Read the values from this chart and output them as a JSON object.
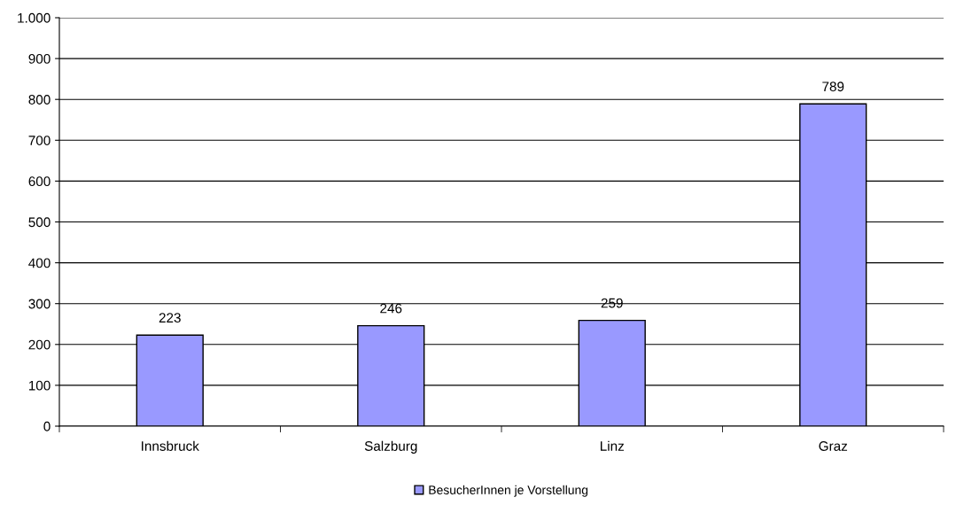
{
  "chart_data": {
    "type": "bar",
    "categories": [
      "Innsbruck",
      "Salzburg",
      "Linz",
      "Graz"
    ],
    "series": [
      {
        "name": "BesucherInnen je Vorstellung",
        "color": "#9999ff",
        "values": [
          223,
          246,
          259,
          789
        ]
      }
    ],
    "data_labels": true,
    "ylim": [
      0,
      1000
    ],
    "yticks": [
      0,
      100,
      200,
      300,
      400,
      500,
      600,
      700,
      800,
      900,
      {
        "value": 1000,
        "label": "1.000"
      }
    ],
    "grid": "y",
    "legend": "bottom"
  }
}
